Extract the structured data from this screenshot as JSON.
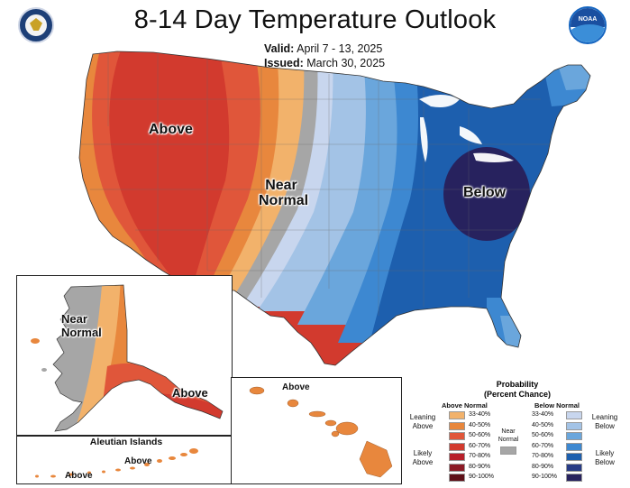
{
  "header": {
    "title": "8-14 Day Temperature Outlook",
    "valid_label": "Valid:",
    "valid_value": "April 7 - 13, 2025",
    "issued_label": "Issued:",
    "issued_value": "March 30, 2025",
    "left_logo": "department-of-commerce-seal",
    "right_logo": "noaa-logo"
  },
  "map_labels": {
    "above": "Above",
    "near_normal_line1": "Near",
    "near_normal_line2": "Normal",
    "below": "Below"
  },
  "alaska": {
    "near_line1": "Near",
    "near_line2": "Normal",
    "above": "Above"
  },
  "hawaii": {
    "above": "Above"
  },
  "aleutian": {
    "title": "Aleutian Islands",
    "above_1": "Above",
    "above_2": "Above"
  },
  "legend": {
    "title_line1": "Probability",
    "title_line2": "(Percent Chance)",
    "above_header": "Above Normal",
    "below_header": "Below Normal",
    "near_header_line1": "Near",
    "near_header_line2": "Normal",
    "leaning_above_1": "Leaning",
    "leaning_above_2": "Above",
    "likely_above_1": "Likely",
    "likely_above_2": "Above",
    "leaning_below_1": "Leaning",
    "leaning_below_2": "Below",
    "likely_below_1": "Likely",
    "likely_below_2": "Below",
    "above_ranges": [
      "33-40%",
      "40-50%",
      "50-60%",
      "60-70%",
      "70-80%",
      "80-90%",
      "90-100%"
    ],
    "below_ranges": [
      "33-40%",
      "40-50%",
      "50-60%",
      "60-70%",
      "70-80%",
      "80-90%",
      "90-100%"
    ],
    "above_colors": [
      "#f2b26b",
      "#e8873d",
      "#e0563a",
      "#d23a2e",
      "#b81f2a",
      "#8c1a25",
      "#5e1018"
    ],
    "below_colors": [
      "#c8d6ee",
      "#a3c3e6",
      "#6aa6dc",
      "#3d88d1",
      "#1d5fae",
      "#273b86",
      "#27225e"
    ],
    "near_color": "#a6a6a6"
  }
}
